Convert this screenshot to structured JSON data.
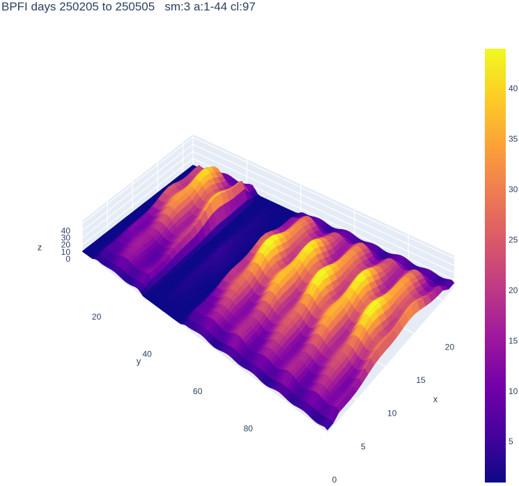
{
  "chart_data": {
    "type": "surface",
    "title": "BPFI days 250205 to 250505   sm:3 a:1-44 cl:97",
    "x_axis": {
      "label": "x",
      "ticks": [
        0,
        5,
        10,
        15,
        20
      ],
      "range": [
        0,
        22
      ]
    },
    "y_axis": {
      "label": "y",
      "ticks": [
        20,
        40,
        60,
        80
      ],
      "range": [
        0,
        97
      ]
    },
    "z_axis": {
      "label": "z",
      "ticks": [
        0,
        10,
        20,
        30,
        40
      ],
      "range": [
        0,
        44
      ]
    },
    "colorscale": "plasma",
    "colorbar": {
      "ticks": [
        5,
        10,
        15,
        20,
        25,
        30,
        35,
        40
      ],
      "range": [
        1,
        44
      ]
    },
    "colors": [
      "#0d0887",
      "#46039f",
      "#7201a8",
      "#9c179e",
      "#bd3786",
      "#d8576b",
      "#ed7953",
      "#fb9f3a",
      "#fdca26",
      "#f0f921"
    ],
    "ridges": [
      {
        "y_from": 5,
        "y_to": 23,
        "peak_z": 40,
        "x_peak": 16
      },
      {
        "y_from": 29,
        "y_to": 36,
        "peak_z": 4,
        "x_peak": 11
      },
      {
        "y_from": 40,
        "y_to": 97,
        "peak_z": 43,
        "x_peak": 13
      }
    ]
  }
}
